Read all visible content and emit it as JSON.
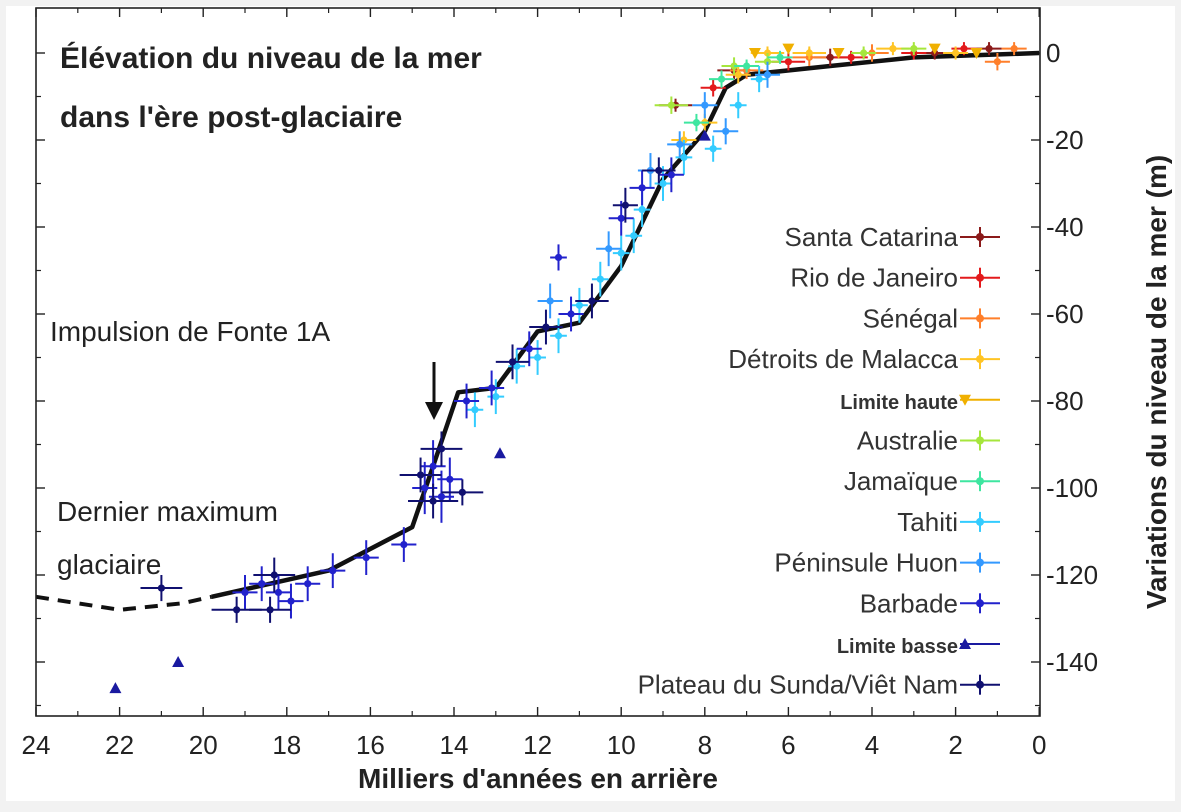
{
  "chart_data": {
    "type": "scatter",
    "title_lines": [
      "Élévation du niveau de la mer",
      "dans l'ère post-glaciaire"
    ],
    "xlabel": "Milliers d'années en arrière",
    "ylabel": "Variations du niveau de la mer (m)",
    "xlim": [
      24,
      0
    ],
    "ylim": [
      -150,
      5
    ],
    "x_ticks": [
      24,
      22,
      20,
      18,
      16,
      14,
      12,
      10,
      8,
      6,
      4,
      2,
      0
    ],
    "y_ticks": [
      0,
      -20,
      -40,
      -60,
      -80,
      -100,
      -120,
      -140
    ],
    "y_axis_side": "right",
    "annotations": {
      "mwp": "Impulsion de Fonte 1A",
      "lgm_line1": "Dernier maximum",
      "lgm_line2": "glaciaire"
    },
    "legend": [
      {
        "label": "Santa Catarina",
        "color": "#8b1a1a",
        "marker": "plus",
        "bold": false
      },
      {
        "label": "Rio de Janeiro",
        "color": "#e31a1c",
        "marker": "plus",
        "bold": false
      },
      {
        "label": "Sénégal",
        "color": "#ff7f2a",
        "marker": "plus",
        "bold": false
      },
      {
        "label": "Détroits de Malacca",
        "color": "#ffc425",
        "marker": "plus",
        "bold": false
      },
      {
        "label": "Limite haute",
        "color": "#f0b000",
        "marker": "triangle-down",
        "bold": true
      },
      {
        "label": "Australie",
        "color": "#a6e63c",
        "marker": "plus",
        "bold": false
      },
      {
        "label": "Jamaïque",
        "color": "#3ee6a0",
        "marker": "plus",
        "bold": false
      },
      {
        "label": "Tahiti",
        "color": "#33ccff",
        "marker": "plus",
        "bold": false
      },
      {
        "label": "Péninsule Huon",
        "color": "#3399ff",
        "marker": "plus",
        "bold": false
      },
      {
        "label": "Barbade",
        "color": "#2222cc",
        "marker": "plus",
        "bold": false
      },
      {
        "label": "Limite basse",
        "color": "#1a1aa0",
        "marker": "triangle-up",
        "bold": true
      },
      {
        "label": "Plateau du Sunda/Viêt Nam",
        "color": "#101070",
        "marker": "plus",
        "bold": false
      }
    ],
    "trend_solid": [
      [
        19.8,
        -125
      ],
      [
        17,
        -119
      ],
      [
        15,
        -109
      ],
      [
        14.5,
        -95
      ],
      [
        13.9,
        -78
      ],
      [
        13,
        -77
      ],
      [
        12,
        -64
      ],
      [
        11,
        -62
      ],
      [
        10,
        -49
      ],
      [
        9,
        -29
      ],
      [
        8,
        -18
      ],
      [
        7.5,
        -8
      ],
      [
        7,
        -5
      ],
      [
        5,
        -3
      ],
      [
        3,
        -1
      ],
      [
        0,
        0
      ]
    ],
    "trend_dashed": [
      [
        24,
        -125
      ],
      [
        22,
        -128
      ],
      [
        20.5,
        -126.5
      ],
      [
        19.8,
        -125
      ]
    ],
    "series": [
      {
        "name": "Santa Catarina",
        "color": "#8b1a1a",
        "marker": "plus",
        "points": [
          [
            8.7,
            -12,
            0.4,
            1.5
          ],
          [
            7.3,
            -4,
            0.4,
            2
          ],
          [
            5,
            -1,
            0.4,
            2
          ],
          [
            2.5,
            0,
            0.3,
            1.5
          ],
          [
            1.2,
            1,
            0.3,
            1.5
          ]
        ]
      },
      {
        "name": "Rio de Janeiro",
        "color": "#e31a1c",
        "marker": "plus",
        "points": [
          [
            7.8,
            -8,
            0.3,
            2
          ],
          [
            6,
            -2,
            0.4,
            2
          ],
          [
            4.5,
            -1,
            0.4,
            1.5
          ],
          [
            3,
            0,
            0.3,
            1.5
          ],
          [
            1.8,
            1,
            0.3,
            1.5
          ]
        ]
      },
      {
        "name": "Sénégal",
        "color": "#ff7f2a",
        "marker": "plus",
        "points": [
          [
            7,
            -4,
            0.4,
            2
          ],
          [
            5.5,
            -1,
            0.4,
            2
          ],
          [
            4,
            0,
            0.4,
            2
          ],
          [
            1,
            -2,
            0.3,
            2
          ],
          [
            0.6,
            1,
            0.3,
            1.5
          ]
        ]
      },
      {
        "name": "Détroits de Malacca",
        "color": "#ffc425",
        "marker": "plus",
        "points": [
          [
            8.5,
            -20,
            0.3,
            2
          ],
          [
            8,
            -16,
            0.3,
            2
          ],
          [
            7.2,
            -5,
            0.3,
            2
          ],
          [
            6.5,
            0,
            0.4,
            1.5
          ],
          [
            5.5,
            0,
            0.4,
            1.5
          ],
          [
            3.5,
            1,
            0.4,
            1.5
          ],
          [
            2,
            0,
            0.3,
            1.5
          ]
        ]
      },
      {
        "name": "Limite haute",
        "color": "#f0b000",
        "marker": "triangle-down",
        "points": [
          [
            6.8,
            0,
            0,
            0
          ],
          [
            6,
            1,
            0,
            0
          ],
          [
            4.8,
            0,
            0,
            0
          ],
          [
            2.5,
            1,
            0,
            0
          ],
          [
            1.5,
            0,
            0,
            0
          ]
        ]
      },
      {
        "name": "Australie",
        "color": "#a6e63c",
        "marker": "plus",
        "points": [
          [
            8.8,
            -12,
            0.4,
            2
          ],
          [
            7.3,
            -3,
            0.3,
            2
          ],
          [
            6.5,
            -2,
            0.3,
            2
          ],
          [
            4.2,
            0,
            0.3,
            1.5
          ],
          [
            3,
            1,
            0.3,
            1.5
          ]
        ]
      },
      {
        "name": "Jamaïque",
        "color": "#3ee6a0",
        "marker": "plus",
        "points": [
          [
            8.2,
            -16,
            0.3,
            2
          ],
          [
            7.6,
            -6,
            0.3,
            2
          ],
          [
            7,
            -3,
            0.3,
            1.5
          ],
          [
            6.2,
            -1,
            0.3,
            1.5
          ]
        ]
      },
      {
        "name": "Tahiti",
        "color": "#33ccff",
        "marker": "plus",
        "points": [
          [
            13.5,
            -82,
            0.2,
            4
          ],
          [
            13,
            -79,
            0.2,
            4
          ],
          [
            12.5,
            -72,
            0.2,
            4
          ],
          [
            12,
            -70,
            0.2,
            4
          ],
          [
            11.5,
            -65,
            0.2,
            4
          ],
          [
            11,
            -58,
            0.2,
            4
          ],
          [
            10.5,
            -52,
            0.2,
            4
          ],
          [
            10,
            -46,
            0.2,
            4
          ],
          [
            9.7,
            -42,
            0.2,
            4
          ],
          [
            9.5,
            -36,
            0.2,
            4
          ],
          [
            9,
            -30,
            0.2,
            4
          ],
          [
            8.5,
            -24,
            0.2,
            4
          ],
          [
            7.8,
            -22,
            0.2,
            3
          ],
          [
            7.2,
            -12,
            0.2,
            3
          ],
          [
            6.7,
            -6,
            0.2,
            3
          ]
        ]
      },
      {
        "name": "Péninsule Huon",
        "color": "#3399ff",
        "marker": "plus",
        "points": [
          [
            11.7,
            -57,
            0.3,
            4
          ],
          [
            10.3,
            -45,
            0.3,
            4
          ],
          [
            9.3,
            -27,
            0.3,
            4
          ],
          [
            8.6,
            -21,
            0.3,
            3
          ],
          [
            8,
            -12,
            0.3,
            3
          ],
          [
            7.5,
            -18,
            0.3,
            3
          ],
          [
            6.5,
            -5,
            0.3,
            3
          ]
        ]
      },
      {
        "name": "Barbade",
        "color": "#2222cc",
        "marker": "plus",
        "points": [
          [
            19,
            -124,
            0.3,
            4
          ],
          [
            18.6,
            -122,
            0.3,
            4
          ],
          [
            18.2,
            -124,
            0.3,
            4
          ],
          [
            17.9,
            -126,
            0.3,
            4
          ],
          [
            17.5,
            -122,
            0.3,
            4
          ],
          [
            16.9,
            -119,
            0.3,
            4
          ],
          [
            16.1,
            -116,
            0.3,
            4
          ],
          [
            15.2,
            -113,
            0.3,
            4
          ],
          [
            14.7,
            -100,
            0.3,
            6
          ],
          [
            14.5,
            -95,
            0.3,
            6
          ],
          [
            14.3,
            -102,
            0.3,
            6
          ],
          [
            14.1,
            -98,
            0.3,
            5
          ],
          [
            13.7,
            -80,
            0.3,
            4
          ],
          [
            13.1,
            -77,
            0.3,
            4
          ],
          [
            12.2,
            -68,
            0.3,
            4
          ],
          [
            11.2,
            -60,
            0.3,
            4
          ],
          [
            11.5,
            -47,
            0.2,
            3
          ],
          [
            10,
            -38,
            0.3,
            4
          ],
          [
            9.5,
            -31,
            0.3,
            4
          ],
          [
            8.8,
            -28,
            0.3,
            4
          ]
        ]
      },
      {
        "name": "Limite basse",
        "color": "#1a1aa0",
        "marker": "triangle-up",
        "points": [
          [
            22.1,
            -146,
            0,
            0
          ],
          [
            20.6,
            -140,
            0,
            0
          ],
          [
            12.9,
            -92,
            0,
            0
          ],
          [
            8,
            -19,
            0,
            0
          ]
        ]
      },
      {
        "name": "Plateau du Sunda/Viêt Nam",
        "color": "#101070",
        "marker": "plus",
        "points": [
          [
            21,
            -123,
            0.5,
            3
          ],
          [
            19.2,
            -128,
            0.6,
            3
          ],
          [
            18.4,
            -128,
            0.5,
            3
          ],
          [
            18.3,
            -120,
            0.5,
            4
          ],
          [
            14.8,
            -97,
            0.5,
            4
          ],
          [
            14.5,
            -103,
            0.6,
            4
          ],
          [
            14.3,
            -91,
            0.5,
            4
          ],
          [
            13.8,
            -101,
            0.5,
            3
          ],
          [
            12.6,
            -71,
            0.4,
            4
          ],
          [
            11.8,
            -63,
            0.4,
            4
          ],
          [
            10.7,
            -57,
            0.4,
            4
          ],
          [
            9.9,
            -35,
            0.3,
            4
          ],
          [
            9.1,
            -27,
            0.4,
            3
          ]
        ]
      }
    ]
  }
}
